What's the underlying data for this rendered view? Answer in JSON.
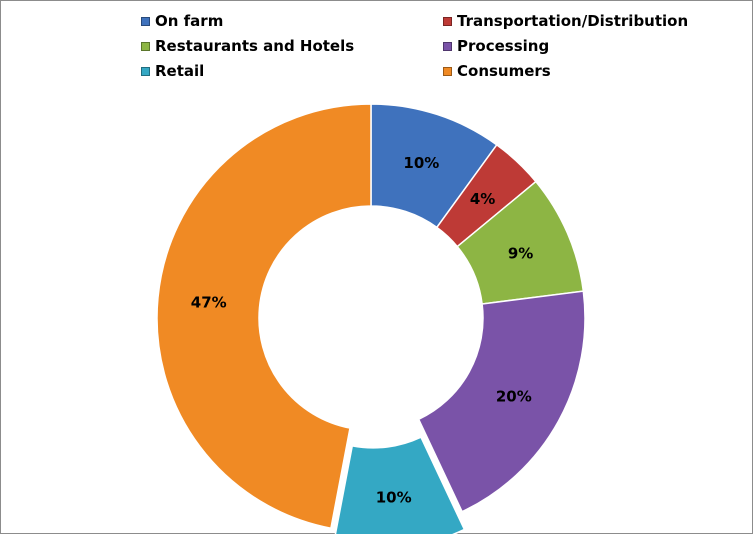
{
  "chart_data": {
    "type": "pie",
    "variant": "doughnut",
    "categories": [
      "On farm",
      "Transportation/Distribution",
      "Restaurants and Hotels",
      "Processing",
      "Retail",
      "Consumers"
    ],
    "values": [
      10,
      4,
      9,
      20,
      10,
      47
    ],
    "labels": [
      "10%",
      "4%",
      "9%",
      "20%",
      "10%",
      "47%"
    ],
    "colors": [
      "#3f72bd",
      "#be3a36",
      "#8db544",
      "#7a53a8",
      "#34a8c4",
      "#f08a24"
    ],
    "exploded": [
      "Retail"
    ],
    "legend_position": "top",
    "title": ""
  }
}
